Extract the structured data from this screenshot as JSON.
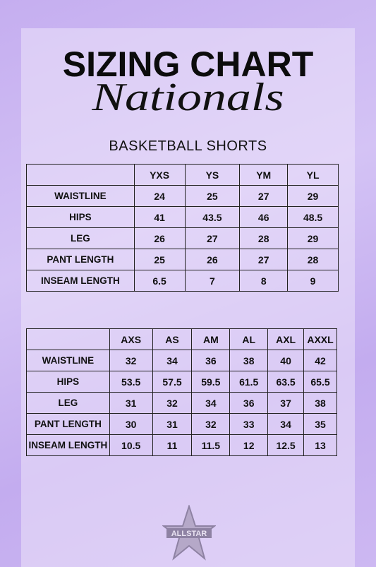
{
  "header": {
    "title": "SIZING CHART",
    "script": "Nationals",
    "subtitle": "BASKETBALL SHORTS"
  },
  "tables": [
    {
      "columns": [
        "YXS",
        "YS",
        "YM",
        "YL"
      ],
      "rows": [
        {
          "label": "WAISTLINE",
          "cells": [
            "24",
            "25",
            "27",
            "29"
          ]
        },
        {
          "label": "HIPS",
          "cells": [
            "41",
            "43.5",
            "46",
            "48.5"
          ]
        },
        {
          "label": "LEG",
          "cells": [
            "26",
            "27",
            "28",
            "29"
          ]
        },
        {
          "label": "PANT LENGTH",
          "cells": [
            "25",
            "26",
            "27",
            "28"
          ]
        },
        {
          "label": "INSEAM LENGTH",
          "cells": [
            "6.5",
            "7",
            "8",
            "9"
          ]
        }
      ]
    },
    {
      "columns": [
        "AXS",
        "AS",
        "AM",
        "AL",
        "AXL",
        "AXXL"
      ],
      "rows": [
        {
          "label": "WAISTLINE",
          "cells": [
            "32",
            "34",
            "36",
            "38",
            "40",
            "42"
          ]
        },
        {
          "label": "HIPS",
          "cells": [
            "53.5",
            "57.5",
            "59.5",
            "61.5",
            "63.5",
            "65.5"
          ]
        },
        {
          "label": "LEG",
          "cells": [
            "31",
            "32",
            "34",
            "36",
            "37",
            "38"
          ]
        },
        {
          "label": "PANT LENGTH",
          "cells": [
            "30",
            "31",
            "32",
            "33",
            "34",
            "35"
          ]
        },
        {
          "label": "INSEAM LENGTH",
          "cells": [
            "10.5",
            "11",
            "11.5",
            "12",
            "12.5",
            "13"
          ]
        }
      ]
    }
  ],
  "logo": {
    "text": "ALLSTAR"
  }
}
